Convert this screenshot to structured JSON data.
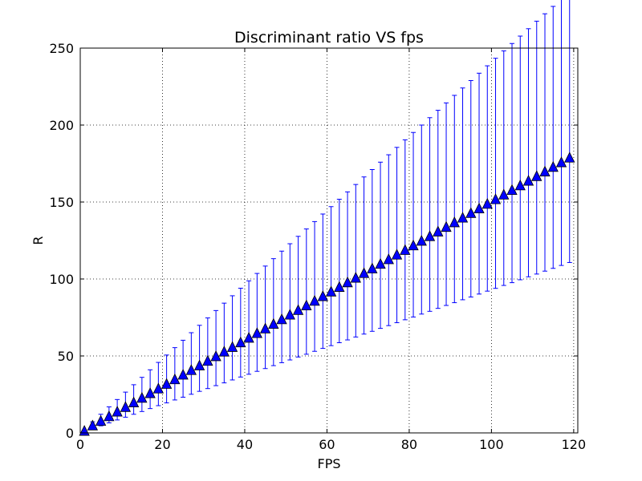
{
  "chart_data": {
    "type": "scatter",
    "title": "Discriminant ratio VS fps",
    "xlabel": "FPS",
    "ylabel": "R",
    "xlim": [
      0,
      121
    ],
    "ylim": [
      0,
      250
    ],
    "xticks": [
      0,
      20,
      40,
      60,
      80,
      100,
      120
    ],
    "yticks": [
      0,
      50,
      100,
      150,
      200,
      250
    ],
    "grid": true,
    "marker": "triangle",
    "colors": {
      "marker_fill": "#0000ff",
      "errorbar": "#0000ff",
      "grid": "#000000"
    },
    "series": [
      {
        "x": [
          1,
          3,
          5,
          7,
          9,
          11,
          13,
          15,
          17,
          19,
          21,
          23,
          25,
          27,
          29,
          31,
          33,
          35,
          37,
          39,
          41,
          43,
          45,
          47,
          49,
          51,
          53,
          55,
          57,
          59,
          61,
          63,
          65,
          67,
          69,
          71,
          73,
          75,
          77,
          79,
          81,
          83,
          85,
          87,
          89,
          91,
          93,
          95,
          97,
          99,
          101,
          103,
          105,
          107,
          109,
          111,
          113,
          115,
          117,
          119
        ],
        "y": [
          1.0,
          4.5,
          7.5,
          10.5,
          13.5,
          16.5,
          19.5,
          22.5,
          25.5,
          28.5,
          31.5,
          34.5,
          37.5,
          40.5,
          43.5,
          46.5,
          49.5,
          52.5,
          55.5,
          58.5,
          61.5,
          64.5,
          67.5,
          70.5,
          73.5,
          76.5,
          79.5,
          82.5,
          85.5,
          88.5,
          91.5,
          94.5,
          97.5,
          100.5,
          103.5,
          106.5,
          109.5,
          112.5,
          115.5,
          118.5,
          121.5,
          124.5,
          127.5,
          130.5,
          133.5,
          136.5,
          139.5,
          142.5,
          145.5,
          148.5,
          151.5,
          154.5,
          157.5,
          160.5,
          163.5,
          166.5,
          169.5,
          172.5,
          175.5,
          178.5
        ],
        "yerr_lower": [
          0.4,
          1.7,
          2.9,
          4.0,
          5.1,
          6.3,
          7.4,
          8.6,
          9.7,
          10.8,
          12.0,
          13.1,
          14.3,
          15.4,
          16.5,
          17.7,
          18.8,
          20.0,
          21.1,
          22.2,
          23.4,
          24.5,
          25.7,
          26.8,
          27.9,
          29.1,
          30.2,
          31.4,
          32.5,
          33.6,
          34.8,
          35.9,
          37.1,
          38.2,
          39.3,
          40.5,
          41.6,
          42.8,
          43.9,
          45.0,
          46.2,
          47.3,
          48.5,
          49.6,
          50.7,
          51.9,
          53.0,
          54.2,
          55.3,
          56.4,
          57.6,
          58.7,
          59.9,
          61.0,
          62.1,
          63.3,
          64.4,
          65.6,
          66.7,
          67.8
        ],
        "yerr_upper": [
          0.6,
          2.7,
          4.6,
          6.4,
          8.2,
          10.0,
          11.8,
          13.6,
          15.5,
          17.3,
          19.1,
          20.9,
          22.7,
          24.6,
          26.4,
          28.2,
          30.0,
          31.8,
          33.6,
          35.5,
          37.3,
          39.1,
          40.9,
          42.7,
          44.6,
          46.4,
          48.2,
          50.0,
          51.8,
          53.7,
          55.5,
          57.3,
          59.1,
          60.9,
          62.8,
          64.6,
          66.4,
          68.2,
          70.0,
          71.9,
          73.7,
          75.5,
          77.3,
          79.1,
          80.9,
          82.8,
          84.6,
          86.4,
          88.2,
          90.0,
          91.9,
          93.7,
          95.5,
          97.3,
          99.1,
          101.0,
          102.8,
          104.6,
          106.4,
          108.2
        ]
      }
    ]
  }
}
